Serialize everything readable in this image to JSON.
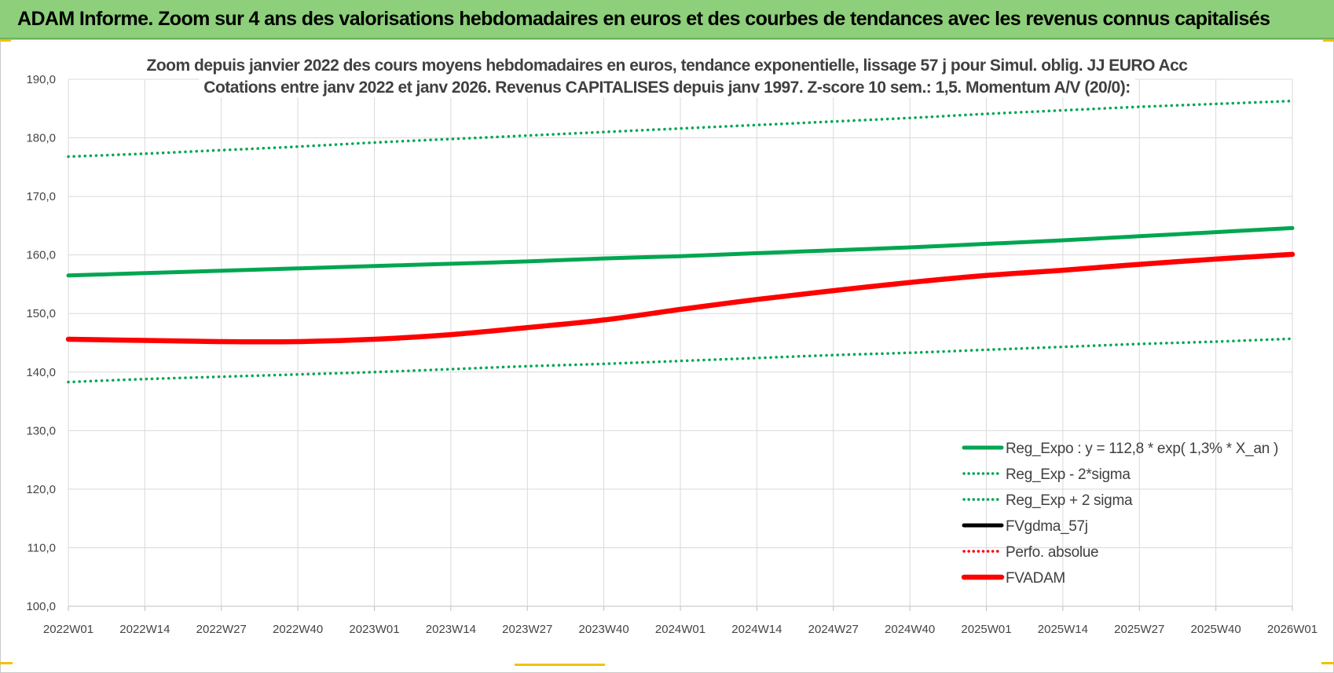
{
  "banner": {
    "title": "ADAM Informe. Zoom sur 4 ans des valorisations hebdomadaires en euros et des courbes de tendances avec les revenus connus capitalisés",
    "color": "#8dcf7a"
  },
  "chart_data": {
    "type": "line",
    "title_lines": [
      "Zoom depuis janvier 2022 des cours moyens hebdomadaires en euros, tendance exponentielle, lissage 57 j pour Simul. oblig. JJ EURO Acc",
      "Cotations entre janv 2022 et janv 2026. Revenus CAPITALISES depuis janv 1997. Z-score 10 sem.: 1,5. Momentum A/V (20/0):"
    ],
    "xlabel": "",
    "ylabel": "",
    "ylim": [
      100,
      190
    ],
    "y_ticks": [
      "100,0",
      "110,0",
      "120,0",
      "130,0",
      "140,0",
      "150,0",
      "160,0",
      "170,0",
      "180,0",
      "190,0"
    ],
    "x_ticks": [
      "2022W01",
      "2022W14",
      "2022W27",
      "2022W40",
      "2023W01",
      "2023W14",
      "2023W27",
      "2023W40",
      "2024W01",
      "2024W14",
      "2024W27",
      "2024W40",
      "2025W01",
      "2025W14",
      "2025W27",
      "2025W40",
      "2026W01"
    ],
    "grid": true,
    "legend_position": "bottom-right",
    "series": [
      {
        "name": "Reg_Expo : y = 112,8 * exp( 1,3% *  X_an )",
        "style": "solid",
        "color": "#00a651",
        "values": [
          156.5,
          156.9,
          157.3,
          157.7,
          158.1,
          158.5,
          158.9,
          159.4,
          159.8,
          160.3,
          160.8,
          161.3,
          161.9,
          162.5,
          163.2,
          163.9,
          164.6
        ]
      },
      {
        "name": "Reg_Exp - 2*sigma",
        "style": "dotted",
        "color": "#00a651",
        "values": [
          138.3,
          138.8,
          139.2,
          139.6,
          140.0,
          140.5,
          141.0,
          141.4,
          141.9,
          142.4,
          142.9,
          143.3,
          143.8,
          144.3,
          144.8,
          145.2,
          145.7
        ]
      },
      {
        "name": "Reg_Exp + 2 sigma",
        "style": "dotted",
        "color": "#00a651",
        "values": [
          176.8,
          177.3,
          177.9,
          178.5,
          179.2,
          179.8,
          180.4,
          181.0,
          181.6,
          182.2,
          182.8,
          183.4,
          184.1,
          184.7,
          185.3,
          185.8,
          186.3
        ]
      },
      {
        "name": "FVgdma_57j",
        "style": "solid",
        "color": "#000000",
        "values": []
      },
      {
        "name": "Perfo. absolue",
        "style": "dotted",
        "color": "#ff0000",
        "values": []
      },
      {
        "name": "FVADAM",
        "style": "solid-thick",
        "color": "#ff0000",
        "values": [
          145.6,
          145.4,
          145.2,
          145.2,
          145.6,
          146.4,
          147.6,
          148.9,
          150.7,
          152.4,
          153.9,
          155.3,
          156.5,
          157.4,
          158.4,
          159.3,
          160.1
        ]
      }
    ]
  }
}
